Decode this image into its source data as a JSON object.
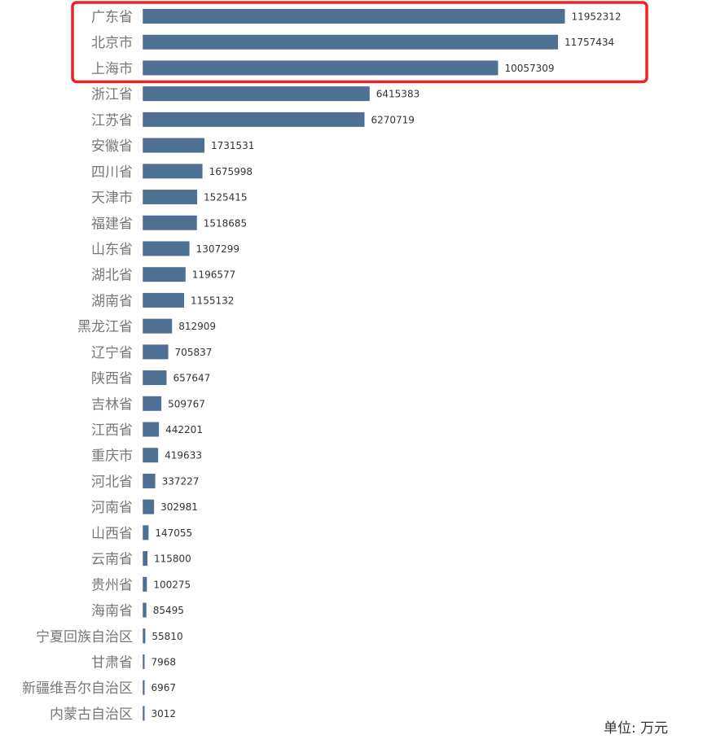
{
  "chart_data": {
    "type": "bar",
    "orientation": "horizontal",
    "categories": [
      "广东省",
      "北京市",
      "上海市",
      "浙江省",
      "江苏省",
      "安徽省",
      "四川省",
      "天津市",
      "福建省",
      "山东省",
      "湖北省",
      "湖南省",
      "黑龙江省",
      "辽宁省",
      "陕西省",
      "吉林省",
      "江西省",
      "重庆市",
      "河北省",
      "河南省",
      "山西省",
      "云南省",
      "贵州省",
      "海南省",
      "宁夏回族自治区",
      "甘肃省",
      "新疆维吾尔自治区",
      "内蒙古自治区"
    ],
    "values": [
      11952312,
      11757434,
      10057309,
      6415383,
      6270719,
      1731531,
      1675998,
      1525415,
      1518685,
      1307299,
      1196577,
      1155132,
      812909,
      705837,
      657647,
      509767,
      442201,
      419633,
      337227,
      302981,
      147055,
      115800,
      100275,
      85495,
      55810,
      7968,
      6967,
      3012
    ],
    "value_labels": [
      "11952312",
      "11757434",
      "10057309",
      "6415383",
      "6270719",
      "1731531",
      "1675998",
      "1525415",
      "1518685",
      "1307299",
      "1196577",
      "1155132",
      "812909",
      "705837",
      "657647",
      "509767",
      "442201",
      "419633",
      "337227",
      "302981",
      "147055",
      "115800",
      "100275",
      "85495",
      "55810",
      "7968",
      "6967",
      "3012"
    ],
    "xlim": [
      0,
      12000000
    ],
    "grid": false,
    "unit_label": "单位: 万元",
    "highlight": {
      "categories": [
        "广东省",
        "北京市",
        "上海市"
      ],
      "color": "#ee2222"
    },
    "colors": {
      "bar": "#4e7093",
      "category_text": "#777777",
      "value_text": "#333333",
      "axis_line": "#999999"
    }
  }
}
